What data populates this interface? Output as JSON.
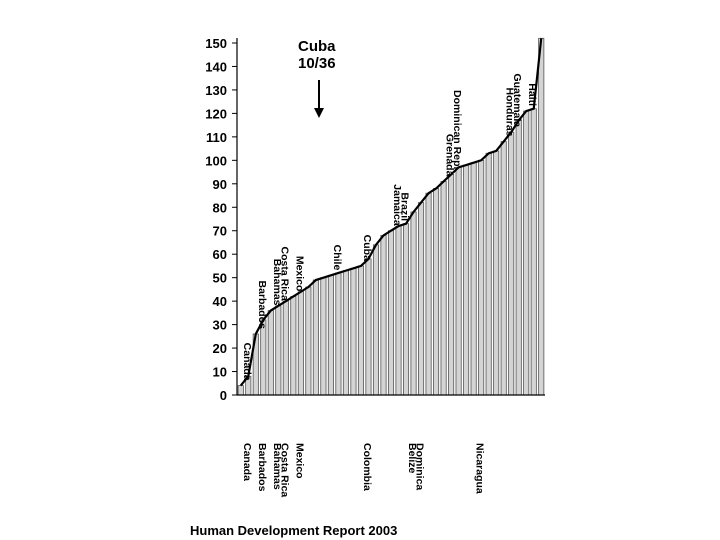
{
  "chart_data": {
    "type": "bar",
    "title": "",
    "xlabel": "",
    "ylabel": "",
    "ylim": [
      0,
      150
    ],
    "yticks": [
      0,
      10,
      20,
      30,
      40,
      50,
      60,
      70,
      80,
      90,
      100,
      110,
      120,
      130,
      140,
      150
    ],
    "grid": false,
    "annotation": {
      "line1": "Cuba",
      "line2": "10/36"
    },
    "footer": "Human Development Report 2003",
    "values": [
      4,
      8,
      26,
      32,
      36,
      38,
      40,
      42,
      44,
      46,
      49,
      50,
      51,
      52,
      53,
      54,
      55,
      58,
      64,
      68,
      70,
      72,
      73,
      78,
      82,
      86,
      88,
      91,
      94,
      97,
      98,
      99,
      100,
      103,
      104,
      108,
      112,
      117,
      121,
      122,
      152
    ],
    "bar_color": "#d4d4d4",
    "line_color": "#000000",
    "labels_above": [
      {
        "i": 0,
        "text": "Canada"
      },
      {
        "i": 2,
        "text": "Barbados"
      },
      {
        "i": 4,
        "text": "Bahamas"
      },
      {
        "i": 5,
        "text": "Costa Rica"
      },
      {
        "i": 7,
        "text": "Mexico"
      },
      {
        "i": 12,
        "text": "Chile"
      },
      {
        "i": 16,
        "text": "Cuba"
      },
      {
        "i": 20,
        "text": "Jamaica"
      },
      {
        "i": 21,
        "text": "Brazil"
      },
      {
        "i": 27,
        "text": "Grenada"
      },
      {
        "i": 28,
        "text": "Dominican Rep."
      },
      {
        "i": 35,
        "text": "Honduras"
      },
      {
        "i": 36,
        "text": "Guatemala"
      },
      {
        "i": 38,
        "text": "Haiti"
      }
    ],
    "labels_below": [
      {
        "i": 0,
        "text": "Canada"
      },
      {
        "i": 2,
        "text": "Barbados"
      },
      {
        "i": 4,
        "text": "Bahamas"
      },
      {
        "i": 5,
        "text": "Costa Rica"
      },
      {
        "i": 7,
        "text": "Mexico"
      },
      {
        "i": 16,
        "text": "Colombia"
      },
      {
        "i": 22,
        "text": "Belize"
      },
      {
        "i": 23,
        "text": "Dominica"
      },
      {
        "i": 31,
        "text": "Nicaragua"
      }
    ]
  }
}
